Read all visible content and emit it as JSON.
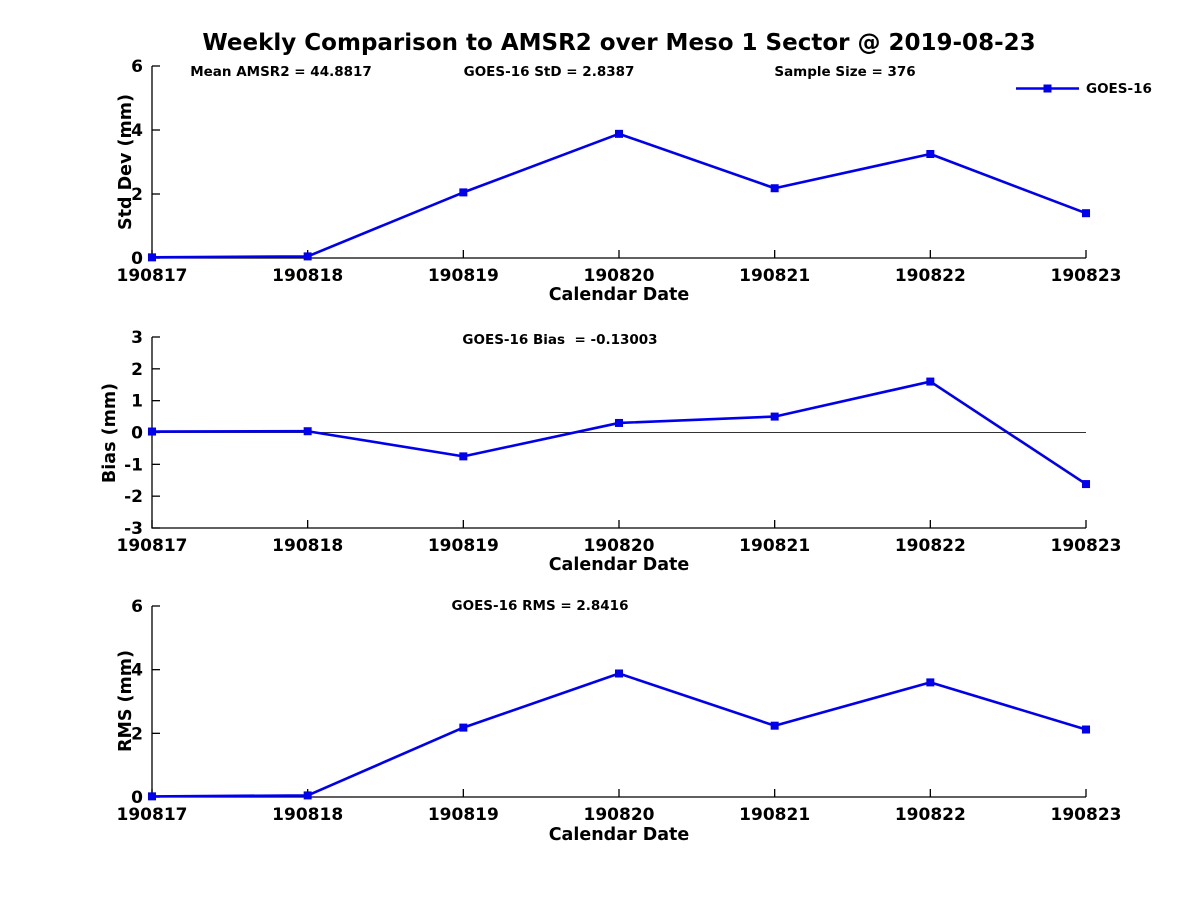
{
  "chart_data": {
    "type": "line",
    "title": "Weekly Comparison to AMSR2 over Meso 1 Sector @ 2019-08-23",
    "categories": [
      "190817",
      "190818",
      "190819",
      "190820",
      "190821",
      "190822",
      "190823"
    ],
    "xlabel": "Calendar Date",
    "legend": {
      "label": "GOES-16",
      "position": "top-right",
      "marker": "square"
    },
    "grid": false,
    "colors": {
      "line": "#0000EE",
      "text": "#000000",
      "axis": "#000000",
      "zero_line": "#333333"
    },
    "subplots": [
      {
        "name": "std_dev",
        "ylabel": "Std Dev (mm)",
        "ylim": [
          0,
          6
        ],
        "yticks": [
          6,
          4,
          2,
          0
        ],
        "values": [
          0.02,
          0.05,
          2.05,
          3.88,
          2.18,
          3.25,
          1.4
        ],
        "zero_line": false,
        "annotations": [
          "Mean AMSR2 = 44.8817",
          "GOES-16 StD = 2.8387",
          "Sample Size = 376"
        ]
      },
      {
        "name": "bias",
        "ylabel": "Bias (mm)",
        "ylim": [
          -3,
          3
        ],
        "yticks": [
          3,
          2,
          1,
          0,
          -1,
          -2,
          -3
        ],
        "values": [
          0.03,
          0.04,
          -0.75,
          0.3,
          0.5,
          1.6,
          -1.62
        ],
        "zero_line": true,
        "annotations": [
          "GOES-16 Bias  = -0.13003"
        ]
      },
      {
        "name": "rms",
        "ylabel": "RMS (mm)",
        "ylim": [
          0,
          6
        ],
        "yticks": [
          6,
          4,
          2,
          0
        ],
        "values": [
          0.02,
          0.05,
          2.18,
          3.88,
          2.24,
          3.6,
          2.12
        ],
        "zero_line": false,
        "annotations": [
          "GOES-16 RMS = 2.8416"
        ]
      }
    ]
  }
}
